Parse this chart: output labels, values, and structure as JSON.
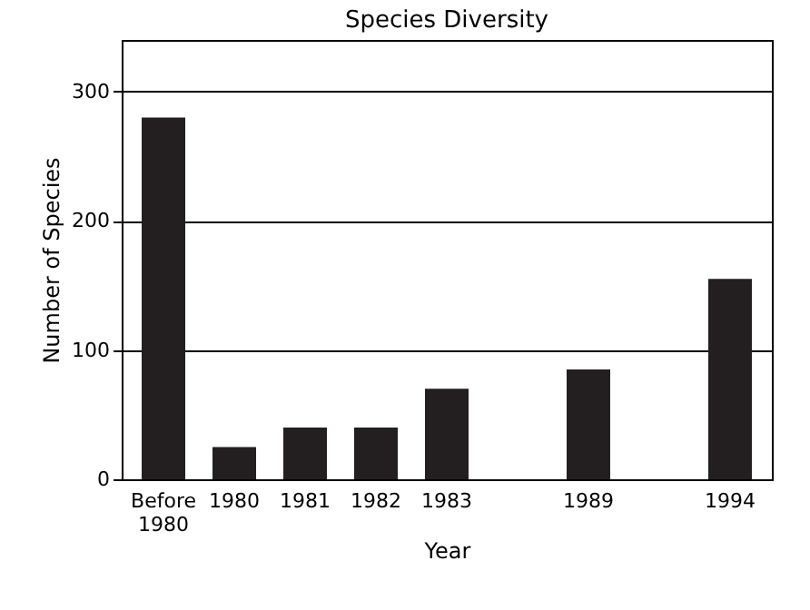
{
  "chart_data": {
    "type": "bar",
    "title": "Species Diversity",
    "xlabel": "Year",
    "ylabel": "Number of Species",
    "categories": [
      "Before 1980",
      "1980",
      "1981",
      "1982",
      "1983",
      null,
      "1989",
      null,
      "1994"
    ],
    "values": [
      280,
      25,
      40,
      40,
      70,
      null,
      85,
      null,
      155
    ],
    "color": "#231f20",
    "ylim": [
      0,
      340
    ],
    "yticks": [
      0,
      100,
      200,
      300
    ],
    "grid": "y"
  }
}
